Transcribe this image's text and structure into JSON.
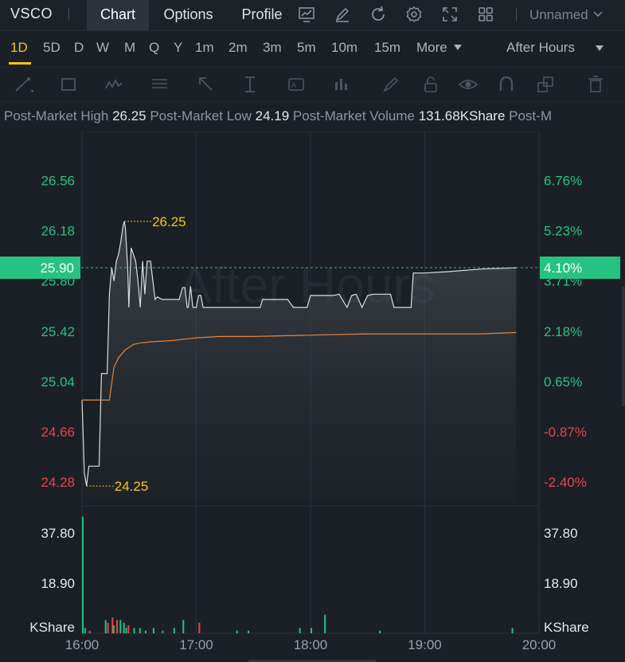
{
  "header": {
    "ticker": "VSCO",
    "tabs": [
      {
        "label": "Chart",
        "active": true
      },
      {
        "label": "Options",
        "active": false
      },
      {
        "label": "Profile",
        "active": false
      }
    ],
    "icons": [
      "indicator-chart-icon",
      "draw-pen-icon",
      "refresh-icon",
      "settings-gear-icon",
      "fullscreen-icon",
      "layout-grid-icon"
    ],
    "layout_name": "Unnamed"
  },
  "periods": {
    "items": [
      "1D",
      "5D",
      "D",
      "W",
      "M",
      "Q",
      "Y",
      "1m",
      "2m",
      "3m",
      "5m",
      "10m",
      "15m",
      "More"
    ],
    "active": "1D",
    "session": "After Hours"
  },
  "stats": {
    "high_label": "Post-Market High",
    "high_value": "26.25",
    "low_label": "Post-Market Low",
    "low_value": "24.19",
    "volume_label": "Post-Market Volume",
    "volume_value": "131.68KShare",
    "overflow_label": "Post-M"
  },
  "colors": {
    "up": "#26c281",
    "down": "#e2474e",
    "price_line": "#dadde1",
    "avg_line": "#e8833a",
    "highlight": "#f5c518"
  },
  "chart_data": {
    "type": "line",
    "watermark": "After Hours",
    "x_ticks": [
      "16:00",
      "17:00",
      "18:00",
      "19:00",
      "20:00"
    ],
    "y_ticks": [
      "26.56",
      "26.18",
      "25.80",
      "25.42",
      "25.04",
      "24.66",
      "24.28"
    ],
    "y_ticks_values": [
      26.56,
      26.18,
      25.8,
      25.42,
      25.04,
      24.66,
      24.28
    ],
    "pct_ticks": [
      "6.76%",
      "5.23%",
      "3.71%",
      "2.18%",
      "0.65%",
      "-0.87%",
      "-2.40%"
    ],
    "ylim": [
      24.13,
      26.93
    ],
    "current_price": "25.90",
    "current_pct": "4.10%",
    "high_label": "26.25",
    "high_time": 0.37,
    "low_label": "24.25",
    "low_time": 0.04,
    "price_series": [
      [
        0,
        24.9
      ],
      [
        0.02,
        24.35
      ],
      [
        0.04,
        24.25
      ],
      [
        0.06,
        24.4
      ],
      [
        0.15,
        24.4
      ],
      [
        0.17,
        25.1
      ],
      [
        0.22,
        25.1
      ],
      [
        0.24,
        25.7
      ],
      [
        0.26,
        25.9
      ],
      [
        0.28,
        25.8
      ],
      [
        0.3,
        25.95
      ],
      [
        0.32,
        26.0
      ],
      [
        0.34,
        26.1
      ],
      [
        0.36,
        26.22
      ],
      [
        0.37,
        26.25
      ],
      [
        0.38,
        26.2
      ],
      [
        0.4,
        25.9
      ],
      [
        0.41,
        25.6
      ],
      [
        0.43,
        26.05
      ],
      [
        0.45,
        26.0
      ],
      [
        0.47,
        25.95
      ],
      [
        0.49,
        25.8
      ],
      [
        0.51,
        25.6
      ],
      [
        0.53,
        25.95
      ],
      [
        0.55,
        25.7
      ],
      [
        0.57,
        25.95
      ],
      [
        0.6,
        25.95
      ],
      [
        0.62,
        25.8
      ],
      [
        0.64,
        25.66
      ],
      [
        0.66,
        25.68
      ],
      [
        0.7,
        25.66
      ],
      [
        0.85,
        25.66
      ],
      [
        0.88,
        25.75
      ],
      [
        0.9,
        25.75
      ],
      [
        0.92,
        25.6
      ],
      [
        0.93,
        25.6
      ],
      [
        0.95,
        25.76
      ],
      [
        0.97,
        25.6
      ],
      [
        1.0,
        25.6
      ],
      [
        1.02,
        25.69
      ],
      [
        1.04,
        25.69
      ],
      [
        1.06,
        25.6
      ],
      [
        1.1,
        25.6
      ],
      [
        1.3,
        25.6
      ],
      [
        1.5,
        25.6
      ],
      [
        1.56,
        25.6
      ],
      [
        1.58,
        25.66
      ],
      [
        1.75,
        25.66
      ],
      [
        1.8,
        25.66
      ],
      [
        1.85,
        25.6
      ],
      [
        1.97,
        25.6
      ],
      [
        2.0,
        25.69
      ],
      [
        2.2,
        25.69
      ],
      [
        2.25,
        25.7
      ],
      [
        2.32,
        25.6
      ],
      [
        2.36,
        25.69
      ],
      [
        2.4,
        25.7
      ],
      [
        2.45,
        25.6
      ],
      [
        2.5,
        25.69
      ],
      [
        2.55,
        25.7
      ],
      [
        2.6,
        25.7
      ],
      [
        2.67,
        25.7
      ],
      [
        2.7,
        25.7
      ],
      [
        2.73,
        25.6
      ],
      [
        2.8,
        25.6
      ],
      [
        2.88,
        25.6
      ],
      [
        2.9,
        25.86
      ],
      [
        3.0,
        25.86
      ],
      [
        3.2,
        25.87
      ],
      [
        3.5,
        25.89
      ],
      [
        3.8,
        25.9
      ]
    ],
    "avg_series": [
      [
        0,
        24.9
      ],
      [
        0.24,
        24.9
      ],
      [
        0.28,
        25.15
      ],
      [
        0.32,
        25.22
      ],
      [
        0.38,
        25.28
      ],
      [
        0.45,
        25.32
      ],
      [
        0.5,
        25.33
      ],
      [
        0.6,
        25.34
      ],
      [
        0.8,
        25.35
      ],
      [
        0.9,
        25.36
      ],
      [
        1.0,
        25.37
      ],
      [
        1.2,
        25.38
      ],
      [
        1.5,
        25.38
      ],
      [
        2.0,
        25.39
      ],
      [
        2.5,
        25.4
      ],
      [
        3.0,
        25.4
      ],
      [
        3.5,
        25.4
      ],
      [
        3.8,
        25.41
      ]
    ],
    "volume": {
      "unit": "KShare",
      "ticks": [
        "37.80",
        "18.90"
      ],
      "tick_values": [
        37.8,
        18.9
      ],
      "max": 48,
      "bars": [
        [
          0.0,
          44,
          "up"
        ],
        [
          0.02,
          2,
          "up"
        ],
        [
          0.06,
          1,
          "down"
        ],
        [
          0.2,
          5,
          "up"
        ],
        [
          0.22,
          4,
          "down"
        ],
        [
          0.26,
          6,
          "down"
        ],
        [
          0.27,
          3,
          "up"
        ],
        [
          0.3,
          5,
          "down"
        ],
        [
          0.33,
          5,
          "up"
        ],
        [
          0.36,
          4,
          "up"
        ],
        [
          0.38,
          2,
          "up"
        ],
        [
          0.4,
          3,
          "down"
        ],
        [
          0.45,
          2,
          "up"
        ],
        [
          0.5,
          2,
          "up"
        ],
        [
          0.55,
          1,
          "up"
        ],
        [
          0.62,
          2,
          "up"
        ],
        [
          0.7,
          1,
          "up"
        ],
        [
          0.8,
          2,
          "up"
        ],
        [
          0.88,
          5,
          "up"
        ],
        [
          1.02,
          4,
          "down"
        ],
        [
          1.35,
          1,
          "up"
        ],
        [
          1.45,
          1,
          "up"
        ],
        [
          1.9,
          2,
          "up"
        ],
        [
          2.0,
          2,
          "up"
        ],
        [
          2.12,
          7,
          "up"
        ],
        [
          2.6,
          1,
          "up"
        ],
        [
          3.76,
          2,
          "up"
        ]
      ]
    }
  }
}
